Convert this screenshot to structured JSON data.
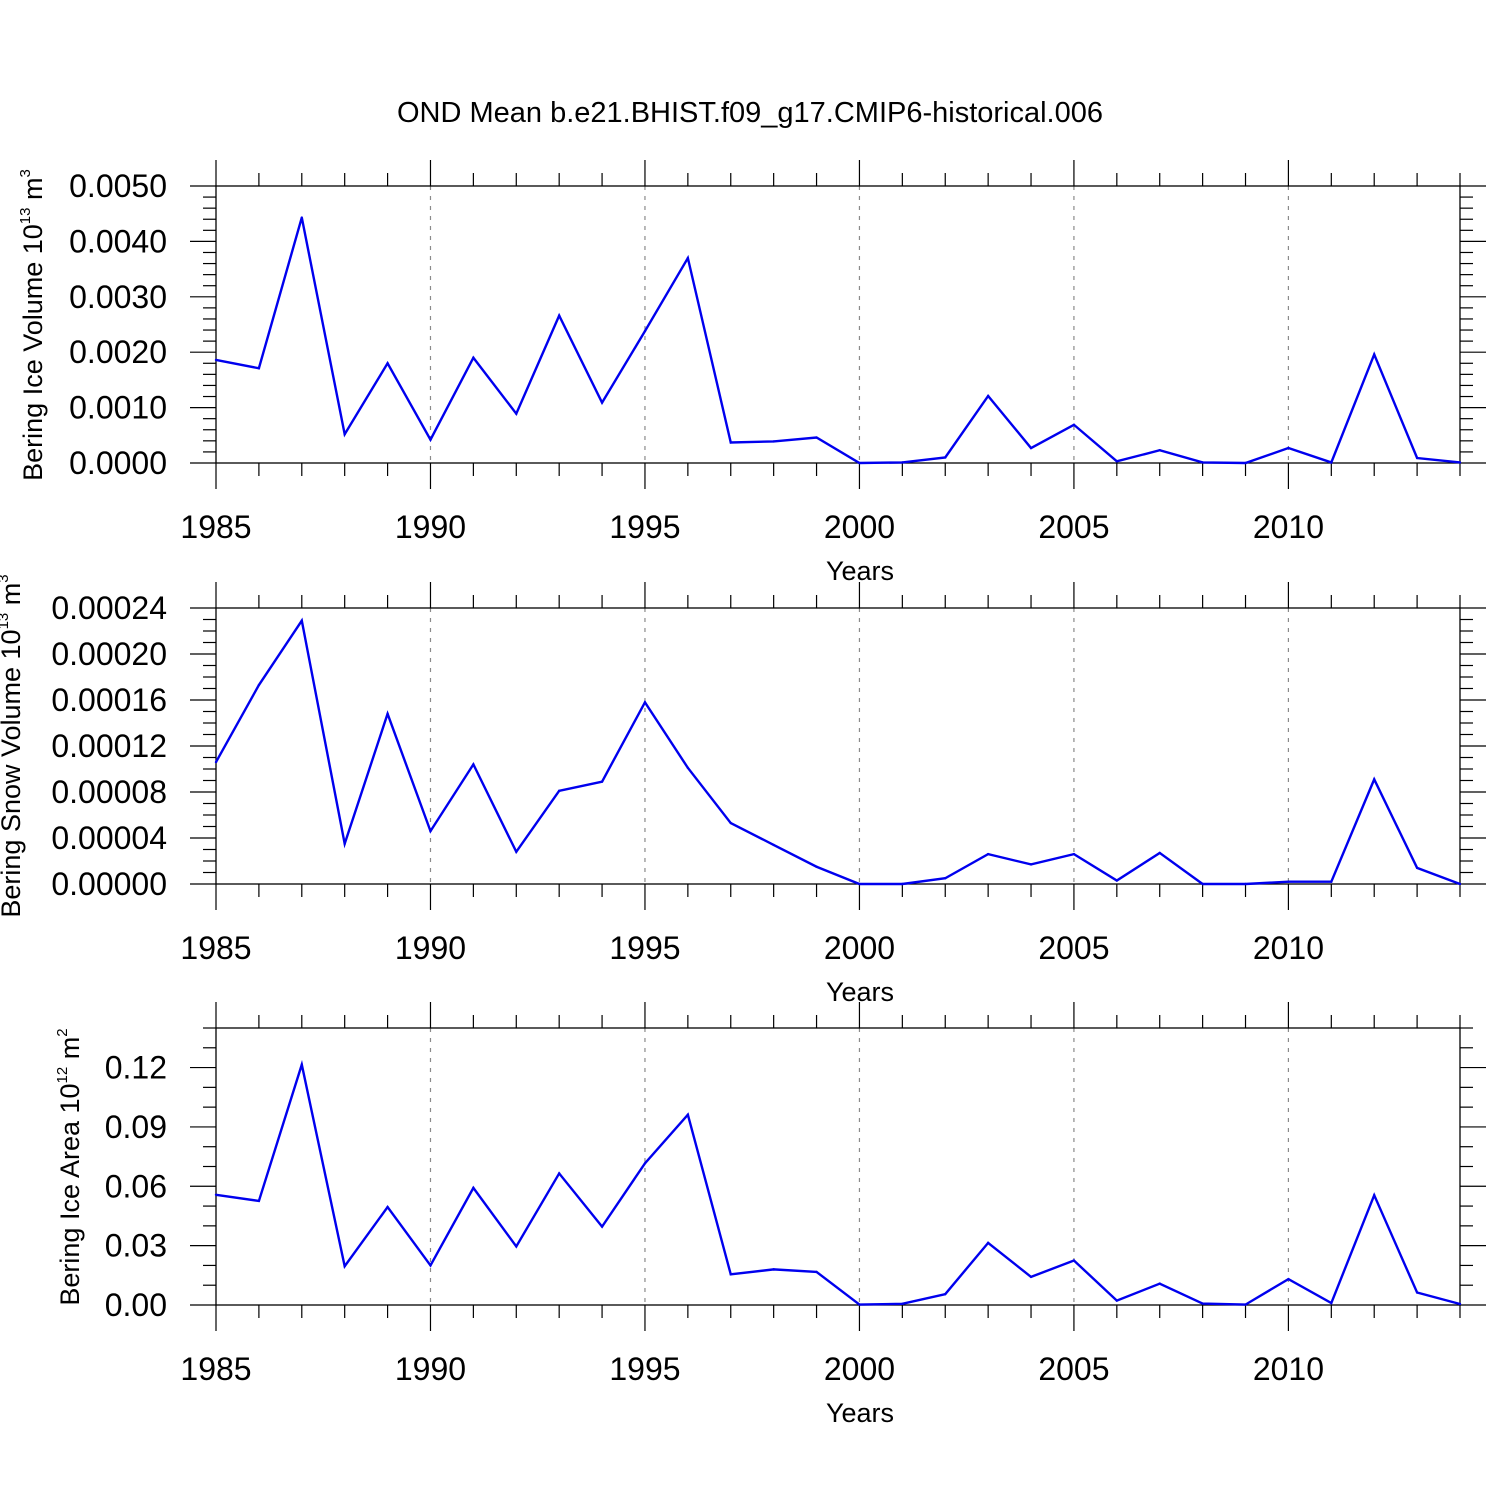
{
  "title": "OND Mean b.e21.BHIST.f09_g17.CMIP6-historical.006",
  "colors": {
    "line": "#0000ee",
    "axis": "#000000",
    "grid": "#8a8a8a"
  },
  "chart_data": [
    {
      "type": "line",
      "xlabel": "Years",
      "ylabel": {
        "text": "Bering Ice Volume 10",
        "exponent": "13",
        "unit": " m",
        "unit_exponent": "3"
      },
      "xlim": [
        1985,
        2014
      ],
      "ylim": [
        0.0,
        0.005
      ],
      "xticks": [
        "1985",
        "1990",
        "1995",
        "2000",
        "2005",
        "2010"
      ],
      "yticks": [
        "0.0000",
        "0.0010",
        "0.0020",
        "0.0030",
        "0.0040",
        "0.0050"
      ],
      "grid": "vertical dashed at major x ticks",
      "x": [
        1985,
        1986,
        1987,
        1988,
        1989,
        1990,
        1991,
        1992,
        1993,
        1994,
        1995,
        1996,
        1997,
        1998,
        1999,
        2000,
        2001,
        2002,
        2003,
        2004,
        2005,
        2006,
        2007,
        2008,
        2009,
        2010,
        2011,
        2012,
        2013,
        2014
      ],
      "series": [
        {
          "name": "Bering Ice Volume",
          "values": [
            0.00186,
            0.00171,
            0.00443,
            0.00052,
            0.0018,
            0.00042,
            0.0019,
            0.00089,
            0.00266,
            0.00109,
            0.00238,
            0.0037,
            0.00037,
            0.00039,
            0.00046,
            0.0,
            1e-05,
            0.0001,
            0.00121,
            0.00027,
            0.00069,
            3e-05,
            0.00023,
            1e-05,
            0.0,
            0.00027,
            1e-05,
            0.00196,
            9e-05,
            1e-05
          ]
        }
      ]
    },
    {
      "type": "line",
      "xlabel": "Years",
      "ylabel": {
        "text": "Bering Snow Volume 10",
        "exponent": "13",
        "unit": " m",
        "unit_exponent": "3"
      },
      "xlim": [
        1985,
        2014
      ],
      "ylim": [
        0.0,
        0.00024
      ],
      "xticks": [
        "1985",
        "1990",
        "1995",
        "2000",
        "2005",
        "2010"
      ],
      "yticks": [
        "0.00000",
        "0.00004",
        "0.00008",
        "0.00012",
        "0.00016",
        "0.00020",
        "0.00024"
      ],
      "grid": "vertical dashed at major x ticks",
      "x": [
        1985,
        1986,
        1987,
        1988,
        1989,
        1990,
        1991,
        1992,
        1993,
        1994,
        1995,
        1996,
        1997,
        1998,
        1999,
        2000,
        2001,
        2002,
        2003,
        2004,
        2005,
        2006,
        2007,
        2008,
        2009,
        2010,
        2011,
        2012,
        2013,
        2014
      ],
      "series": [
        {
          "name": "Bering Snow Volume",
          "values": [
            0.000106,
            0.000173,
            0.000229,
            3.5e-05,
            0.000148,
            4.6e-05,
            0.000104,
            2.8e-05,
            8.1e-05,
            8.9e-05,
            0.000158,
            0.000101,
            5.3e-05,
            3.4e-05,
            1.5e-05,
            0.0,
            0.0,
            5e-06,
            2.6e-05,
            1.7e-05,
            2.6e-05,
            3e-06,
            2.7e-05,
            0.0,
            0.0,
            2e-06,
            2e-06,
            9.1e-05,
            1.4e-05,
            0.0
          ]
        }
      ]
    },
    {
      "type": "line",
      "xlabel": "Years",
      "ylabel": {
        "text": "Bering Ice Area 10",
        "exponent": "12",
        "unit": " m",
        "unit_exponent": "2"
      },
      "xlim": [
        1985,
        2014
      ],
      "ylim": [
        0.0,
        0.14
      ],
      "xticks": [
        "1985",
        "1990",
        "1995",
        "2000",
        "2005",
        "2010"
      ],
      "yticks": [
        "0.00",
        "0.03",
        "0.06",
        "0.09",
        "0.12"
      ],
      "grid": "vertical dashed at major x ticks",
      "x": [
        1985,
        1986,
        1987,
        1988,
        1989,
        1990,
        1991,
        1992,
        1993,
        1994,
        1995,
        1996,
        1997,
        1998,
        1999,
        2000,
        2001,
        2002,
        2003,
        2004,
        2005,
        2006,
        2007,
        2008,
        2009,
        2010,
        2011,
        2012,
        2013,
        2014
      ],
      "series": [
        {
          "name": "Bering Ice Area",
          "values": [
            0.0557,
            0.0526,
            0.1215,
            0.0196,
            0.0495,
            0.02,
            0.0592,
            0.0296,
            0.0665,
            0.0396,
            0.0716,
            0.0962,
            0.0155,
            0.018,
            0.0167,
            0.0002,
            0.0006,
            0.0055,
            0.0314,
            0.0142,
            0.0225,
            0.0022,
            0.0108,
            0.0007,
            0.0002,
            0.0131,
            0.001,
            0.0555,
            0.0063,
            0.0005
          ]
        }
      ]
    }
  ]
}
